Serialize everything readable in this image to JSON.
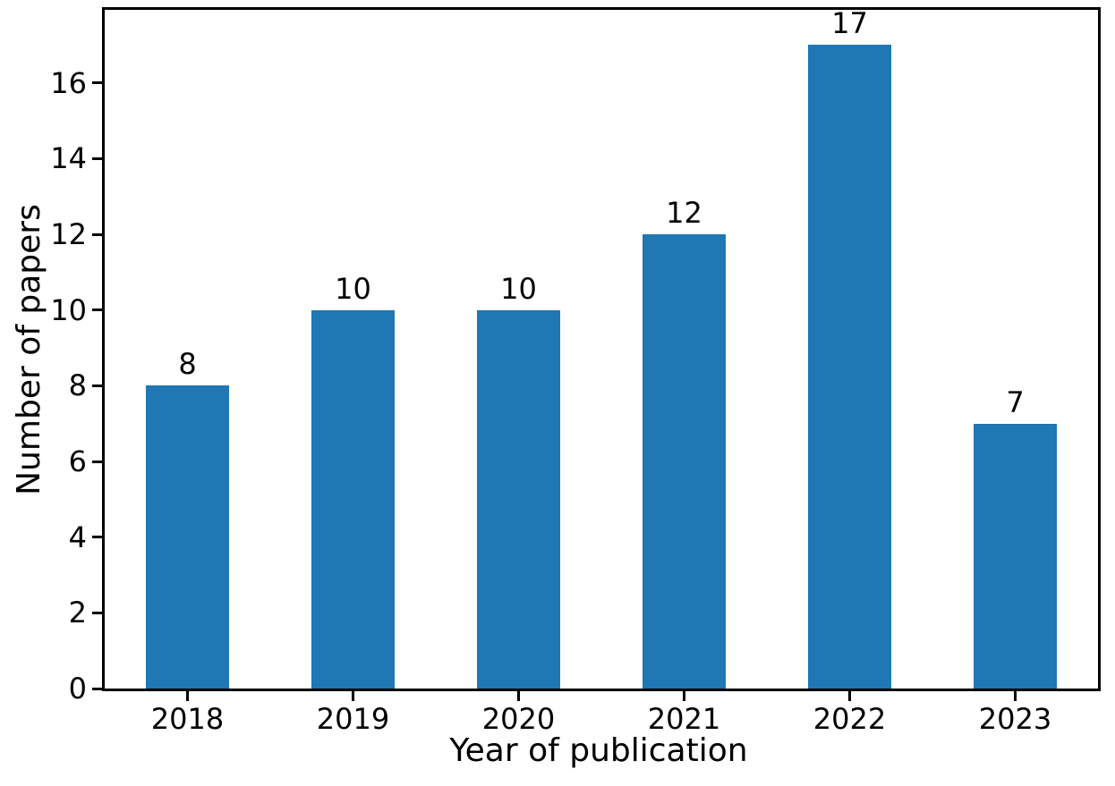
{
  "chart_data": {
    "type": "bar",
    "title": "",
    "xlabel": "Year of publication",
    "ylabel": "Number of papers",
    "categories": [
      "2018",
      "2019",
      "2020",
      "2021",
      "2022",
      "2023"
    ],
    "values": [
      8,
      10,
      10,
      12,
      17,
      7
    ],
    "value_labels": [
      "8",
      "10",
      "10",
      "12",
      "17",
      "7"
    ],
    "yticks": [
      0,
      2,
      4,
      6,
      8,
      10,
      12,
      14,
      16
    ],
    "ylim": [
      0,
      17.93
    ],
    "grid": false,
    "legend": null,
    "bar_width_fraction": 0.5,
    "colors": {
      "bar": "#1f77b4",
      "axis": "#000000",
      "text": "#000000",
      "background": "#ffffff"
    }
  }
}
